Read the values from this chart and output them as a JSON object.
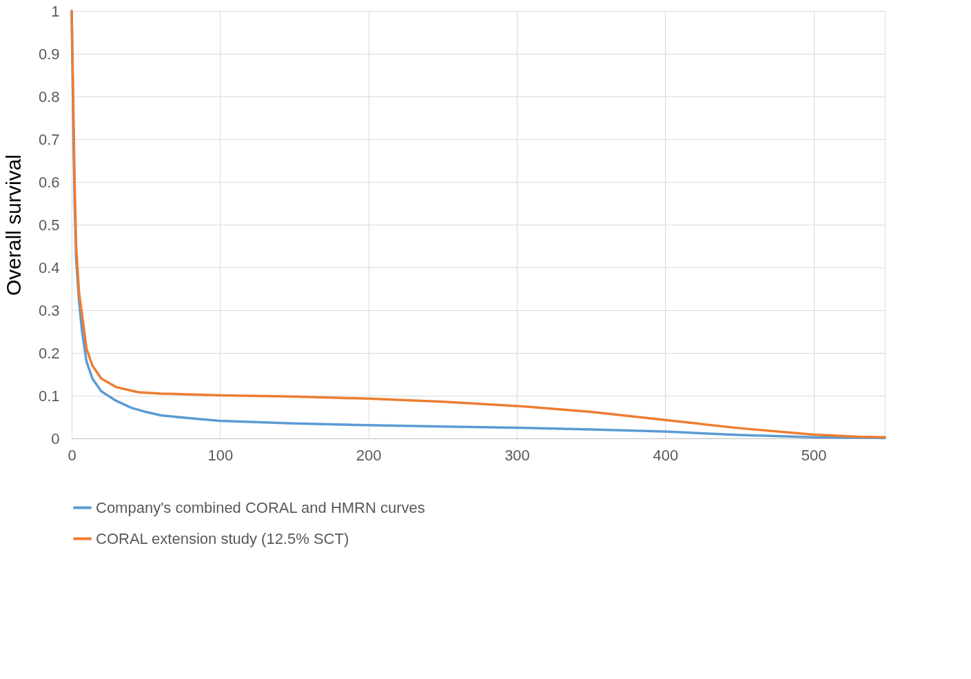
{
  "chart_data": {
    "type": "line",
    "ylabel": "Overall survival",
    "xlim": [
      0,
      548
    ],
    "xticks": [
      0,
      100,
      200,
      300,
      400,
      500
    ],
    "ylim": [
      0,
      1
    ],
    "yticks": [
      0,
      0.1,
      0.2,
      0.3,
      0.4,
      0.5,
      0.6,
      0.7,
      0.8,
      0.9,
      1
    ],
    "grid": true,
    "legend": "bottom",
    "line_style": "solid",
    "series": [
      {
        "name": "Company's combined CORAL and HMRN curves",
        "color": "#5b9bd5",
        "x": [
          0,
          1,
          2,
          3,
          5,
          7,
          10,
          14,
          20,
          30,
          40,
          50,
          60,
          80,
          100,
          150,
          200,
          250,
          300,
          350,
          400,
          450,
          500,
          548
        ],
        "values": [
          1,
          0.75,
          0.55,
          0.42,
          0.32,
          0.25,
          0.18,
          0.14,
          0.11,
          0.088,
          0.072,
          0.062,
          0.054,
          0.047,
          0.041,
          0.035,
          0.031,
          0.028,
          0.025,
          0.021,
          0.016,
          0.008,
          0.003,
          0.001
        ]
      },
      {
        "name": "CORAL extension study (12.5% SCT)",
        "color": "#ed7d31",
        "x": [
          0,
          1,
          2,
          3,
          5,
          7,
          10,
          14,
          20,
          30,
          45,
          60,
          100,
          150,
          200,
          250,
          300,
          350,
          400,
          450,
          500,
          530,
          548
        ],
        "values": [
          1,
          0.8,
          0.6,
          0.45,
          0.34,
          0.29,
          0.21,
          0.17,
          0.14,
          0.12,
          0.108,
          0.105,
          0.101,
          0.098,
          0.093,
          0.086,
          0.076,
          0.062,
          0.043,
          0.024,
          0.009,
          0.004,
          0.003
        ]
      }
    ]
  }
}
